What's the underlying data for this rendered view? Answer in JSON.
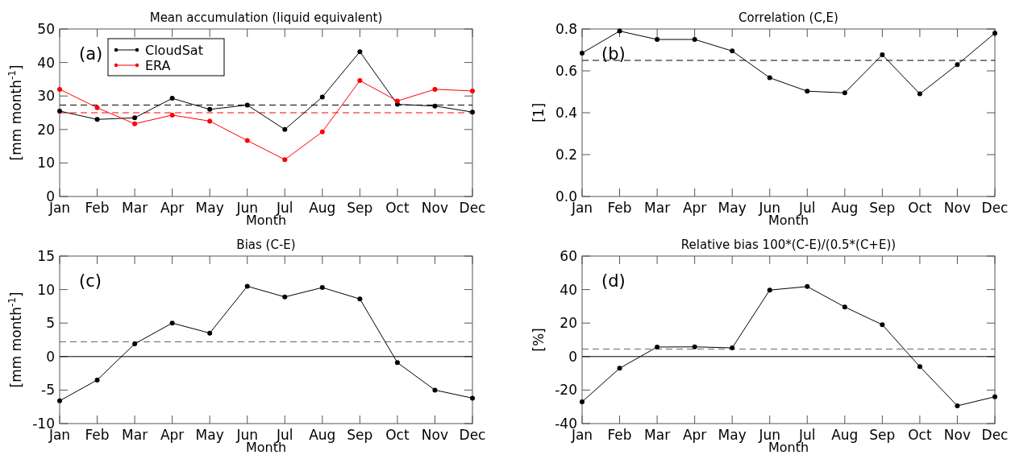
{
  "chart_data": [
    {
      "type": "line",
      "title": "Mean accumulation (liquid equivalent)",
      "xlabel": "Month",
      "ylabel": "[mm month$^{-1}$]",
      "categories": [
        "Jan",
        "Feb",
        "Mar",
        "Apr",
        "May",
        "Jun",
        "Jul",
        "Aug",
        "Sep",
        "Oct",
        "Nov",
        "Dec"
      ],
      "ylim": [
        0,
        50
      ],
      "yticks": [
        0,
        10,
        20,
        30,
        40,
        50
      ],
      "marker": "circle",
      "legend": "top left",
      "annotations": [
        "(a)"
      ],
      "series": [
        {
          "name": "CloudSat",
          "color": "#000000",
          "values": [
            25.5,
            23,
            23.5,
            29.3,
            26,
            27.3,
            20,
            29.7,
            43.2,
            27.5,
            27,
            25.2
          ]
        },
        {
          "name": "ERA",
          "color": "#ff0000",
          "values": [
            32,
            26.5,
            21.7,
            24.3,
            22.5,
            16.7,
            11,
            19.3,
            34.6,
            28.5,
            32,
            31.5
          ]
        }
      ],
      "ref_lines": [
        {
          "axis": "y",
          "value": 27.3,
          "color": "#000000",
          "line_style": "dashed"
        },
        {
          "axis": "y",
          "value": 25,
          "color": "#ff0000",
          "line_style": "dashed"
        }
      ]
    },
    {
      "type": "line",
      "title": "Correlation (C,E)",
      "xlabel": "Month",
      "ylabel": "[1]",
      "categories": [
        "Jan",
        "Feb",
        "Mar",
        "Apr",
        "May",
        "Jun",
        "Jul",
        "Aug",
        "Sep",
        "Oct",
        "Nov",
        "Dec"
      ],
      "ylim": [
        0,
        0.8
      ],
      "yticks": [
        {
          "value": 0,
          "label": "0.0"
        },
        0.2,
        0.4,
        0.6,
        0.8
      ],
      "marker": "circle",
      "annotations": [
        "(b)"
      ],
      "series": [
        {
          "color": "#000000",
          "values": [
            0.685,
            0.79,
            0.75,
            0.75,
            0.695,
            0.567,
            0.503,
            0.495,
            0.677,
            0.49,
            0.63,
            0.78
          ]
        }
      ],
      "ref_lines": [
        {
          "axis": "y",
          "value": 0.65,
          "color": "#000000",
          "line_style": "dashed"
        }
      ]
    },
    {
      "type": "line",
      "title": "Bias (C-E)",
      "xlabel": "Month",
      "ylabel": "[mm month$^{-1}$]",
      "categories": [
        "Jan",
        "Feb",
        "Mar",
        "Apr",
        "May",
        "Jun",
        "Jul",
        "Aug",
        "Sep",
        "Oct",
        "Nov",
        "Dec"
      ],
      "ylim": [
        -10,
        15
      ],
      "yticks": [
        -10,
        -5,
        0,
        5,
        10,
        15
      ],
      "marker": "circle",
      "annotations": [
        "(c)"
      ],
      "series": [
        {
          "color": "#000000",
          "values": [
            -6.6,
            -3.5,
            1.9,
            5,
            3.5,
            10.5,
            8.9,
            10.3,
            8.6,
            -0.9,
            -5,
            -6.2
          ]
        }
      ],
      "ref_lines": [
        {
          "axis": "y",
          "value": 2.2,
          "color": "#666666",
          "line_style": "dashed"
        },
        {
          "axis": "y",
          "value": 0,
          "color": "#000000",
          "line_style": "solid"
        }
      ]
    },
    {
      "type": "line",
      "title": "Relative bias 100*(C-E)/(0.5*(C+E))",
      "xlabel": "Month",
      "ylabel": "[%]",
      "categories": [
        "Jan",
        "Feb",
        "Mar",
        "Apr",
        "May",
        "Jun",
        "Jul",
        "Aug",
        "Sep",
        "Oct",
        "Nov",
        "Dec"
      ],
      "ylim": [
        -40,
        60
      ],
      "yticks": [
        -40,
        -20,
        0,
        20,
        40,
        60
      ],
      "marker": "circle",
      "annotations": [
        "(d)"
      ],
      "series": [
        {
          "color": "#000000",
          "values": [
            -27,
            -7,
            5.7,
            5.8,
            5.2,
            39.7,
            41.8,
            29.6,
            19,
            -6,
            -29.4,
            -24
          ]
        }
      ],
      "ref_lines": [
        {
          "axis": "y",
          "value": 4.5,
          "color": "#666666",
          "line_style": "dashed"
        },
        {
          "axis": "y",
          "value": 0,
          "color": "#000000",
          "line_style": "solid"
        }
      ]
    }
  ]
}
